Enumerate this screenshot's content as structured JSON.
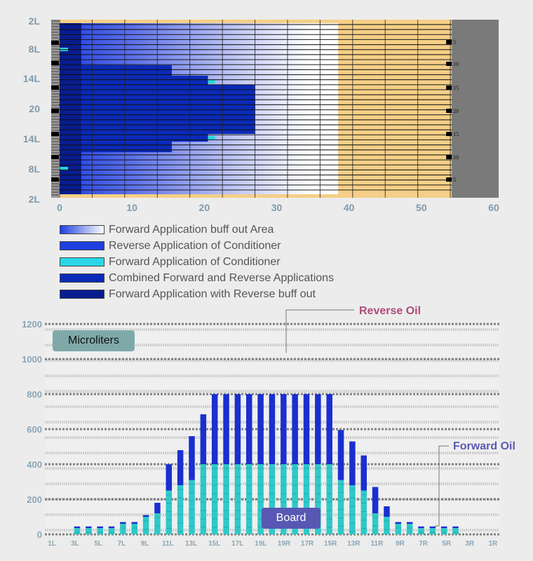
{
  "chart_data": [
    {
      "type": "heatmap",
      "y_tick_labels": [
        "2L",
        "8L",
        "14L",
        "20",
        "14L",
        "8L",
        "2L"
      ],
      "x_ticks": [
        0,
        10,
        20,
        30,
        40,
        50,
        60
      ],
      "xlim": [
        0,
        60
      ],
      "right_marker_labels": [
        "5",
        "10",
        "15",
        "20",
        "15",
        "10",
        "5"
      ],
      "regions": [
        {
          "name": "Forward Application buff out Area",
          "x_range": [
            0,
            38.5
          ]
        },
        {
          "name": "Combined Forward and Reverse Applications",
          "x_range": [
            0,
            27
          ]
        },
        {
          "name": "Forward Application of Conditioner",
          "points": [
            [
              0.5,
              8
            ],
            [
              0.5,
              32
            ],
            [
              20.5,
              14
            ],
            [
              20.5,
              26
            ]
          ]
        }
      ],
      "colors": {
        "base_blue": "#1f3fe0",
        "dark_blue": "#0b2ab8",
        "navy": "#081c8f",
        "cyan": "#29d7d7",
        "tan": "#f5cf87",
        "gray": "#7a7a7a"
      }
    },
    {
      "type": "bar",
      "annotation_label": "Microliters",
      "x_annotation_label": "Board",
      "ylim": [
        0,
        1200
      ],
      "y_ticks": [
        0,
        200,
        400,
        600,
        800,
        1000,
        1200
      ],
      "x_tick_labels": [
        "1L",
        "3L",
        "5L",
        "7L",
        "9L",
        "11L",
        "13L",
        "15L",
        "17L",
        "19L",
        "19R",
        "17R",
        "15R",
        "13R",
        "11R",
        "9R",
        "7R",
        "5R",
        "3R",
        "1R"
      ],
      "series": [
        {
          "name": "Forward Oil",
          "values": [
            35,
            35,
            35,
            35,
            60,
            60,
            100,
            120,
            250,
            280,
            310,
            400,
            400,
            400,
            400,
            400,
            400,
            400,
            400,
            400,
            400,
            400,
            400,
            310,
            280,
            250,
            120,
            100,
            60,
            60,
            35,
            35,
            35,
            35
          ]
        },
        {
          "name": "Reverse Oil",
          "values": [
            10,
            10,
            10,
            10,
            10,
            10,
            10,
            60,
            150,
            200,
            250,
            285,
            400,
            400,
            400,
            400,
            400,
            400,
            400,
            400,
            400,
            400,
            400,
            285,
            250,
            200,
            150,
            60,
            10,
            10,
            10,
            10,
            10,
            10
          ]
        }
      ]
    }
  ],
  "legend": [
    {
      "label": "Forward Application buff out Area",
      "swatch": "gradient"
    },
    {
      "label": "Reverse Application of Conditioner",
      "swatch": "#1f3fe0"
    },
    {
      "label": "Forward Application of Conditioner",
      "swatch": "#29d7e8"
    },
    {
      "label": "Combined Forward and Reverse Applications",
      "swatch": "#0b2ab8"
    },
    {
      "label": "Forward Application with Reverse buff out",
      "swatch": "#081c8f"
    }
  ],
  "labels": {
    "microliters": "Microliters",
    "board": "Board",
    "reverse_oil": "Reverse Oil",
    "forward_oil": "Forward Oil"
  },
  "colors": {
    "reverse_oil_label": "#b04a7a",
    "forward_oil_label": "#5a5ab5",
    "forward_bar": "#2fc9c9",
    "reverse_bar": "#1a2fd0",
    "microliters_box": "#7fa9a9",
    "board_box": "#5858b4"
  }
}
